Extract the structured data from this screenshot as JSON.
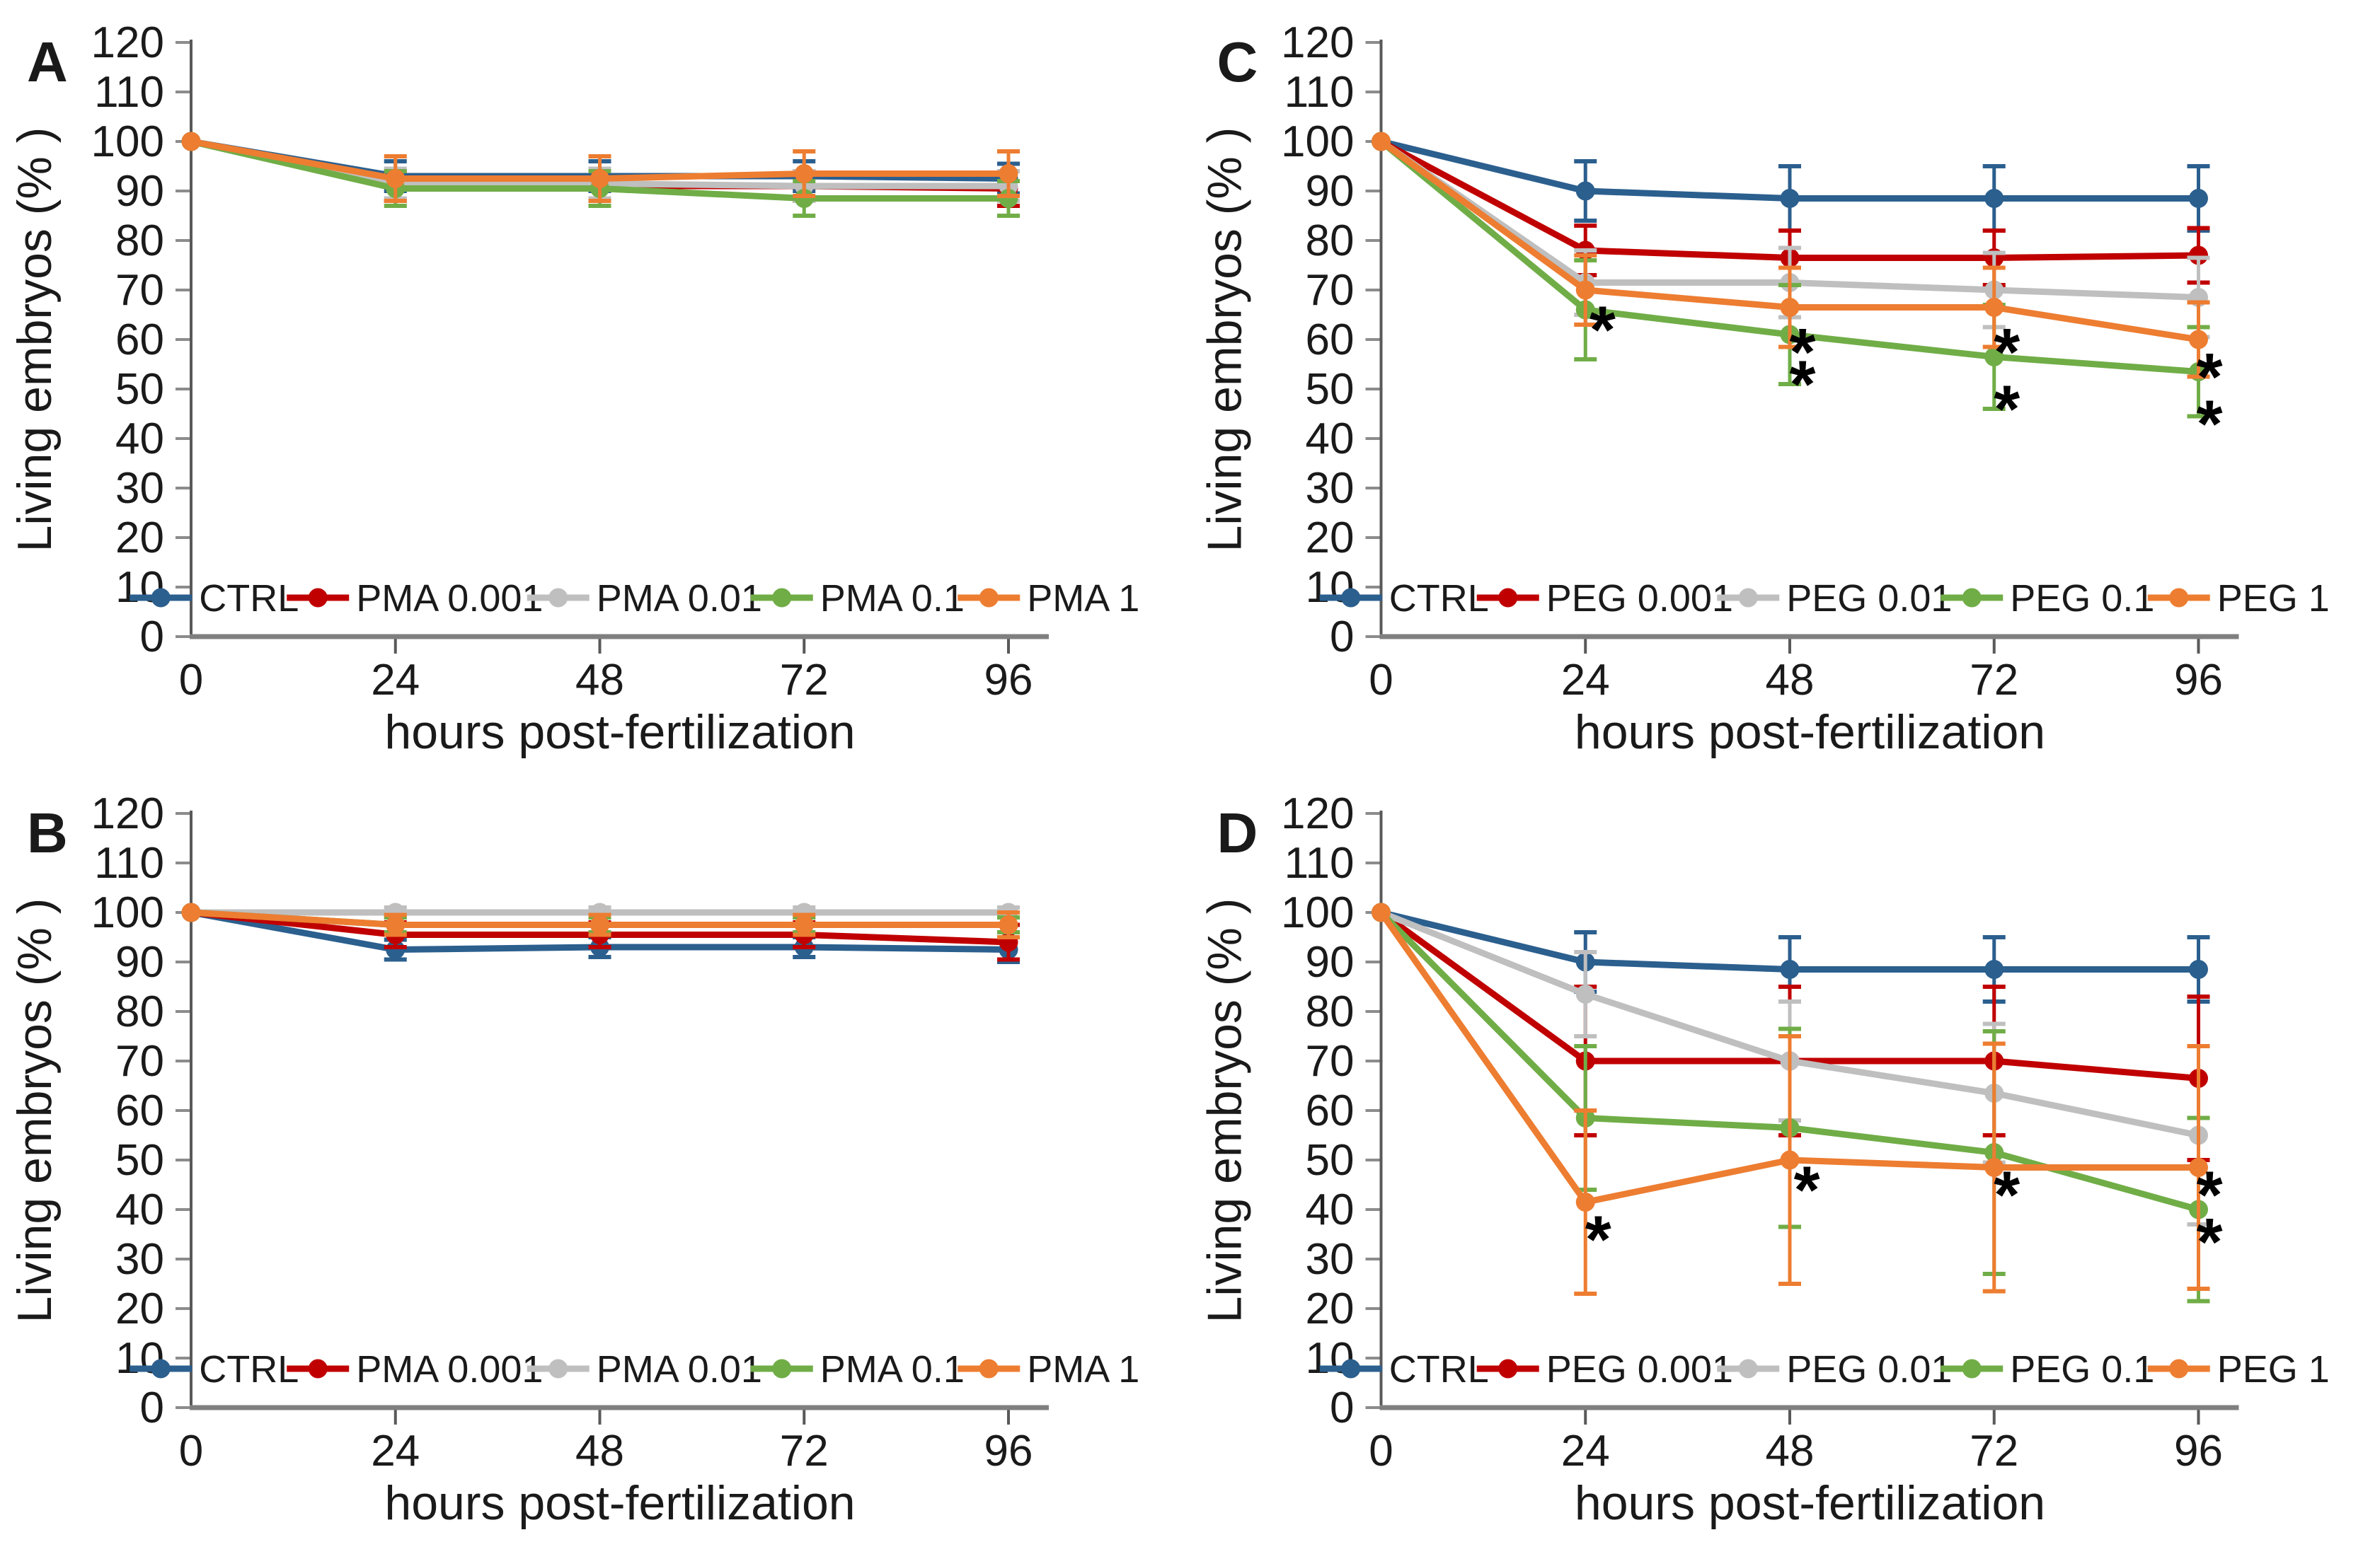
{
  "figure": {
    "background": "#ffffff",
    "text_color": "#1a1a1a",
    "y_axis_color": "#595959",
    "x_axis_color": "#7f7f7f",
    "y_tick_color": "#8c8c8c",
    "x_tick_color": "#595959",
    "annotation_color": "#000000",
    "series_colors": {
      "blue": "#2b5f8e",
      "red": "#c00000",
      "gray": "#bfbfbf",
      "green": "#70ad47",
      "orange": "#ed7d31"
    }
  },
  "chart_data": [
    {
      "panel": "A",
      "type": "line",
      "xlabel": "hours post-fertilization",
      "ylabel": "Living embryos (% )",
      "x": [
        0,
        24,
        48,
        72,
        96
      ],
      "ylim": [
        0,
        120
      ],
      "ytick_step": 10,
      "grid": false,
      "legend_position": "bottom-inside",
      "series": [
        {
          "name": "CTRL",
          "color": "#2b5f8e",
          "values": [
            100,
            93,
            93,
            93,
            92.5
          ],
          "err": [
            0,
            3,
            3,
            3,
            3
          ]
        },
        {
          "name": "PMA 0.001",
          "color": "#c00000",
          "values": [
            100,
            91,
            91,
            91,
            90.5
          ],
          "err": [
            0,
            3,
            3,
            3,
            3.5
          ]
        },
        {
          "name": "PMA 0.01",
          "color": "#bfbfbf",
          "values": [
            100,
            91.5,
            91.5,
            91,
            91
          ],
          "err": [
            0,
            3,
            3,
            3,
            3
          ]
        },
        {
          "name": "PMA 0.1",
          "color": "#70ad47",
          "values": [
            100,
            90.5,
            90.5,
            88.5,
            88.5
          ],
          "err": [
            0,
            3.5,
            3.5,
            3.5,
            3.5
          ]
        },
        {
          "name": "PMA 1",
          "color": "#ed7d31",
          "values": [
            100,
            92.5,
            92.5,
            93.5,
            93.5
          ],
          "err": [
            0,
            4.5,
            4.5,
            4.5,
            4.5
          ]
        }
      ],
      "annotations": []
    },
    {
      "panel": "C",
      "type": "line",
      "xlabel": "hours post-fertilization",
      "ylabel": "Living embryos (% )",
      "x": [
        0,
        24,
        48,
        72,
        96
      ],
      "ylim": [
        0,
        120
      ],
      "ytick_step": 10,
      "grid": false,
      "legend_position": "bottom-inside",
      "series": [
        {
          "name": "CTRL",
          "color": "#2b5f8e",
          "values": [
            100,
            90,
            88.5,
            88.5,
            88.5
          ],
          "err": [
            0,
            6,
            6.5,
            6.5,
            6.5
          ]
        },
        {
          "name": "PEG 0.001",
          "color": "#c00000",
          "values": [
            100,
            78,
            76.5,
            76.5,
            77
          ],
          "err": [
            0,
            5,
            5.5,
            5.5,
            5.5
          ]
        },
        {
          "name": "PEG 0.01",
          "color": "#bfbfbf",
          "values": [
            100,
            71.5,
            71.5,
            70,
            68.5
          ],
          "err": [
            0,
            6.5,
            7,
            7.5,
            8
          ]
        },
        {
          "name": "PEG 0.1",
          "color": "#70ad47",
          "values": [
            100,
            66,
            61,
            56.5,
            53.5
          ],
          "err": [
            0,
            10,
            10,
            10.5,
            9
          ]
        },
        {
          "name": "PEG 1",
          "color": "#ed7d31",
          "values": [
            100,
            70,
            66.5,
            66.5,
            60
          ],
          "err": [
            0,
            7,
            8,
            8,
            7.5
          ]
        }
      ],
      "annotations": [
        {
          "x": 26,
          "y": 64.5,
          "text": "*"
        },
        {
          "x": 49.5,
          "y": 60,
          "text": "*"
        },
        {
          "x": 49.5,
          "y": 53.5,
          "text": "*"
        },
        {
          "x": 73.5,
          "y": 60,
          "text": "*"
        },
        {
          "x": 73.5,
          "y": 48.5,
          "text": "*"
        },
        {
          "x": 97.3,
          "y": 55,
          "text": "*"
        },
        {
          "x": 97.3,
          "y": 45.5,
          "text": "*"
        }
      ]
    },
    {
      "panel": "B",
      "type": "line",
      "xlabel": "hours post-fertilization",
      "ylabel": "Living embryos (% )",
      "x": [
        0,
        24,
        48,
        72,
        96
      ],
      "ylim": [
        0,
        120
      ],
      "ytick_step": 10,
      "grid": false,
      "legend_position": "bottom-inside",
      "series": [
        {
          "name": "CTRL",
          "color": "#2b5f8e",
          "values": [
            100,
            92.5,
            93,
            93,
            92.5
          ],
          "err": [
            0,
            2,
            2,
            2,
            2.5
          ]
        },
        {
          "name": "PMA 0.001",
          "color": "#c00000",
          "values": [
            100,
            95.5,
            95.5,
            95.5,
            94
          ],
          "err": [
            0,
            2.5,
            2.5,
            2.5,
            3.5
          ]
        },
        {
          "name": "PMA 0.01",
          "color": "#bfbfbf",
          "values": [
            100,
            100,
            100,
            100,
            100
          ],
          "err": [
            0,
            1,
            1,
            1,
            1
          ]
        },
        {
          "name": "PMA 0.1",
          "color": "#70ad47",
          "values": [
            100,
            97.5,
            97.5,
            97.5,
            97.5
          ],
          "err": [
            0,
            1.5,
            1.5,
            1.5,
            1.5
          ]
        },
        {
          "name": "PMA 1",
          "color": "#ed7d31",
          "values": [
            100,
            97.5,
            97.5,
            97.5,
            97.5
          ],
          "err": [
            0,
            2,
            2,
            2,
            2.5
          ]
        }
      ],
      "annotations": []
    },
    {
      "panel": "D",
      "type": "line",
      "xlabel": "hours post-fertilization",
      "ylabel": "Living embryos (% )",
      "x": [
        0,
        24,
        48,
        72,
        96
      ],
      "ylim": [
        0,
        120
      ],
      "ytick_step": 10,
      "grid": false,
      "legend_position": "bottom-inside",
      "series": [
        {
          "name": "CTRL",
          "color": "#2b5f8e",
          "values": [
            100,
            90,
            88.5,
            88.5,
            88.5
          ],
          "err": [
            0,
            6,
            6.5,
            6.5,
            6.5
          ]
        },
        {
          "name": "PEG 0.001",
          "color": "#c00000",
          "values": [
            100,
            70,
            70,
            70,
            66.5
          ],
          "err": [
            0,
            15,
            15,
            15,
            16.5
          ]
        },
        {
          "name": "PEG 0.01",
          "color": "#bfbfbf",
          "values": [
            100,
            83.5,
            70,
            63.5,
            55
          ],
          "err": [
            0,
            8.5,
            12,
            14,
            18
          ]
        },
        {
          "name": "PEG 0.1",
          "color": "#70ad47",
          "values": [
            100,
            58.5,
            56.5,
            51.5,
            40
          ],
          "err": [
            0,
            14.5,
            20,
            24.5,
            18.5
          ]
        },
        {
          "name": "PEG 1",
          "color": "#ed7d31",
          "values": [
            100,
            41.5,
            50,
            48.5,
            48.5
          ],
          "err": [
            0,
            18.5,
            25,
            25,
            24.5
          ]
        }
      ],
      "annotations": [
        {
          "x": 25.5,
          "y": 36.5,
          "text": "*"
        },
        {
          "x": 50,
          "y": 46.5,
          "text": "*"
        },
        {
          "x": 73.5,
          "y": 45.5,
          "text": "*"
        },
        {
          "x": 97.3,
          "y": 45.5,
          "text": "*"
        },
        {
          "x": 97.3,
          "y": 36,
          "text": "*"
        }
      ]
    }
  ]
}
